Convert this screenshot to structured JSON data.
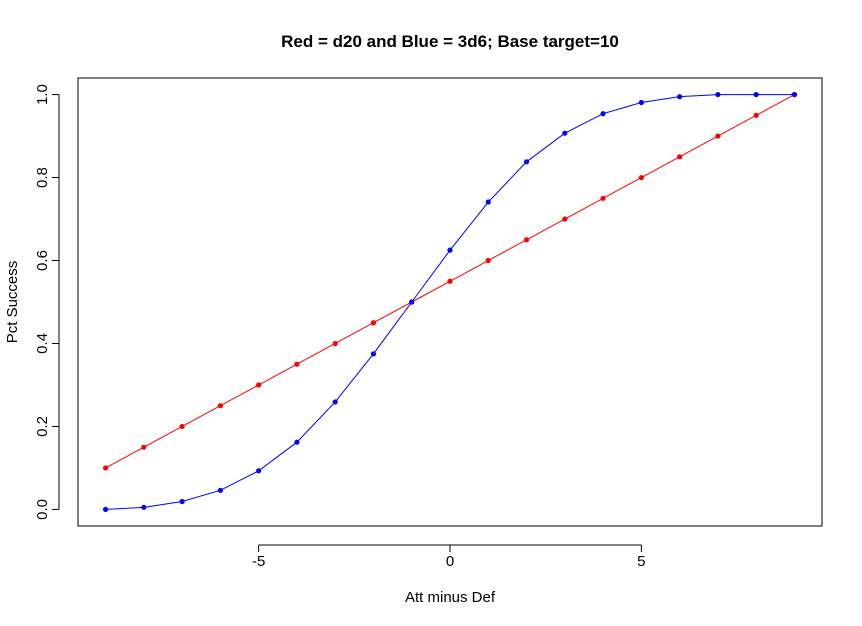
{
  "chart_data": {
    "type": "line",
    "title": "Red = d20 and  Blue = 3d6; Base target=10",
    "xlabel": "Att minus Def",
    "ylabel": "Pct Success",
    "x": [
      -9,
      -8,
      -7,
      -6,
      -5,
      -4,
      -3,
      -2,
      -1,
      0,
      1,
      2,
      3,
      4,
      5,
      6,
      7,
      8,
      9
    ],
    "series": [
      {
        "name": "d20",
        "color": "#ff0000",
        "values": [
          0.1,
          0.15,
          0.2,
          0.25,
          0.3,
          0.35,
          0.4,
          0.45,
          0.5,
          0.55,
          0.6,
          0.65,
          0.7,
          0.75,
          0.8,
          0.85,
          0.9,
          0.95,
          1.0
        ]
      },
      {
        "name": "3d6",
        "color": "#0000ff",
        "values": [
          0.0,
          0.005,
          0.019,
          0.046,
          0.093,
          0.162,
          0.259,
          0.375,
          0.5,
          0.625,
          0.741,
          0.838,
          0.907,
          0.954,
          0.981,
          0.995,
          1.0,
          1.0,
          1.0
        ]
      }
    ],
    "xlim": [
      -9.72,
      9.72
    ],
    "ylim": [
      -0.04,
      1.04
    ],
    "xticks": [
      -5,
      0,
      5
    ],
    "yticks": [
      {
        "value": 0,
        "label": "0.0"
      },
      0.2,
      0.4,
      0.6,
      0.8,
      {
        "value": 1,
        "label": "1.0"
      }
    ],
    "grid": false
  }
}
